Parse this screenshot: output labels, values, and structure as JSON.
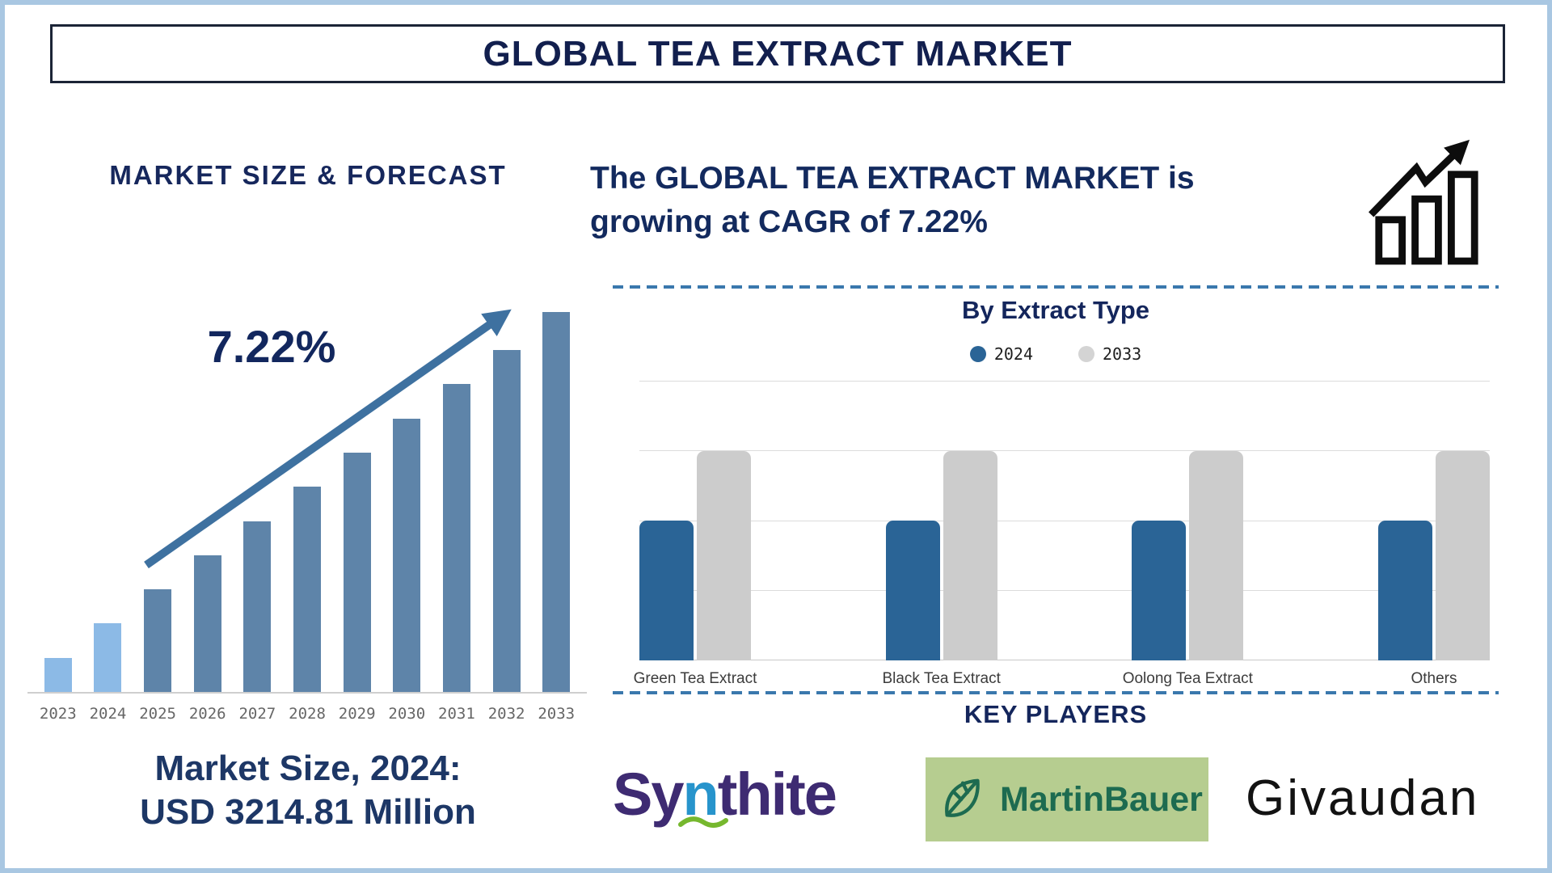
{
  "title": "GLOBAL TEA EXTRACT MARKET",
  "left_panel": {
    "heading": "MARKET SIZE & FORECAST",
    "cagr_label": "7.22%",
    "market_size_line1": "Market Size, 2024:",
    "market_size_line2": "USD 3214.81 Million"
  },
  "right_panel": {
    "growth_line1": "The GLOBAL TEA EXTRACT MARKET is",
    "growth_line2": "growing at CAGR of 7.22%",
    "growth_icon": "growth-chart-icon"
  },
  "chart_data": [
    {
      "id": "market-size-forecast",
      "type": "bar",
      "title": "MARKET SIZE & FORECAST",
      "categories": [
        "2023",
        "2024",
        "2025",
        "2026",
        "2027",
        "2028",
        "2029",
        "2030",
        "2031",
        "2032",
        "2033"
      ],
      "values_relative_pct": [
        9,
        18,
        27,
        36,
        45,
        54,
        63,
        72,
        81,
        90,
        100
      ],
      "bar_colors": [
        "#8cbae6",
        "#8cbae6",
        "#5e84a9",
        "#5e84a9",
        "#5e84a9",
        "#5e84a9",
        "#5e84a9",
        "#5e84a9",
        "#5e84a9",
        "#5e84a9",
        "#5e84a9"
      ],
      "annotations": {
        "cagr": "7.22%",
        "market_size_2024": "USD 3214.81 Million"
      },
      "xlabel": "",
      "ylabel": "",
      "layout": "no numeric y-axis shown; bar heights are illustrative of steady growth; trend arrow overlay"
    },
    {
      "id": "by-extract-type",
      "type": "grouped-bar",
      "title": "By Extract Type",
      "categories": [
        "Green Tea Extract",
        "Black Tea Extract",
        "Oolong Tea Extract",
        "Others"
      ],
      "series": [
        {
          "name": "2024",
          "color": "#2a6496",
          "values_relative_pct": [
            50,
            50,
            50,
            50
          ]
        },
        {
          "name": "2033",
          "color": "#cccccc",
          "values_relative_pct": [
            75,
            75,
            75,
            75
          ]
        }
      ],
      "legend": [
        {
          "label": "2024",
          "color": "#2a6496"
        },
        {
          "label": "2033",
          "color": "#d4d4d4"
        }
      ],
      "legend_position": "top-center",
      "gridlines": true,
      "layout": "no numeric axis labels shown; horizontal gridlines at quarter intervals"
    }
  ],
  "key_players": {
    "title": "KEY PLAYERS",
    "logos": [
      {
        "name": "Synthite",
        "text_before": "Sy",
        "accent_letter": "n",
        "text_after": "thite",
        "colors": {
          "text": "#3e2b72",
          "accent": "#2794cc",
          "swoosh": "#76b82e"
        }
      },
      {
        "name": "MartinBauer",
        "label": "MartinBauer",
        "colors": {
          "bg": "#b6cd90",
          "text": "#1d6b50"
        }
      },
      {
        "name": "Givaudan",
        "label": "Givaudan",
        "colors": {
          "text": "#121212"
        }
      }
    ]
  }
}
